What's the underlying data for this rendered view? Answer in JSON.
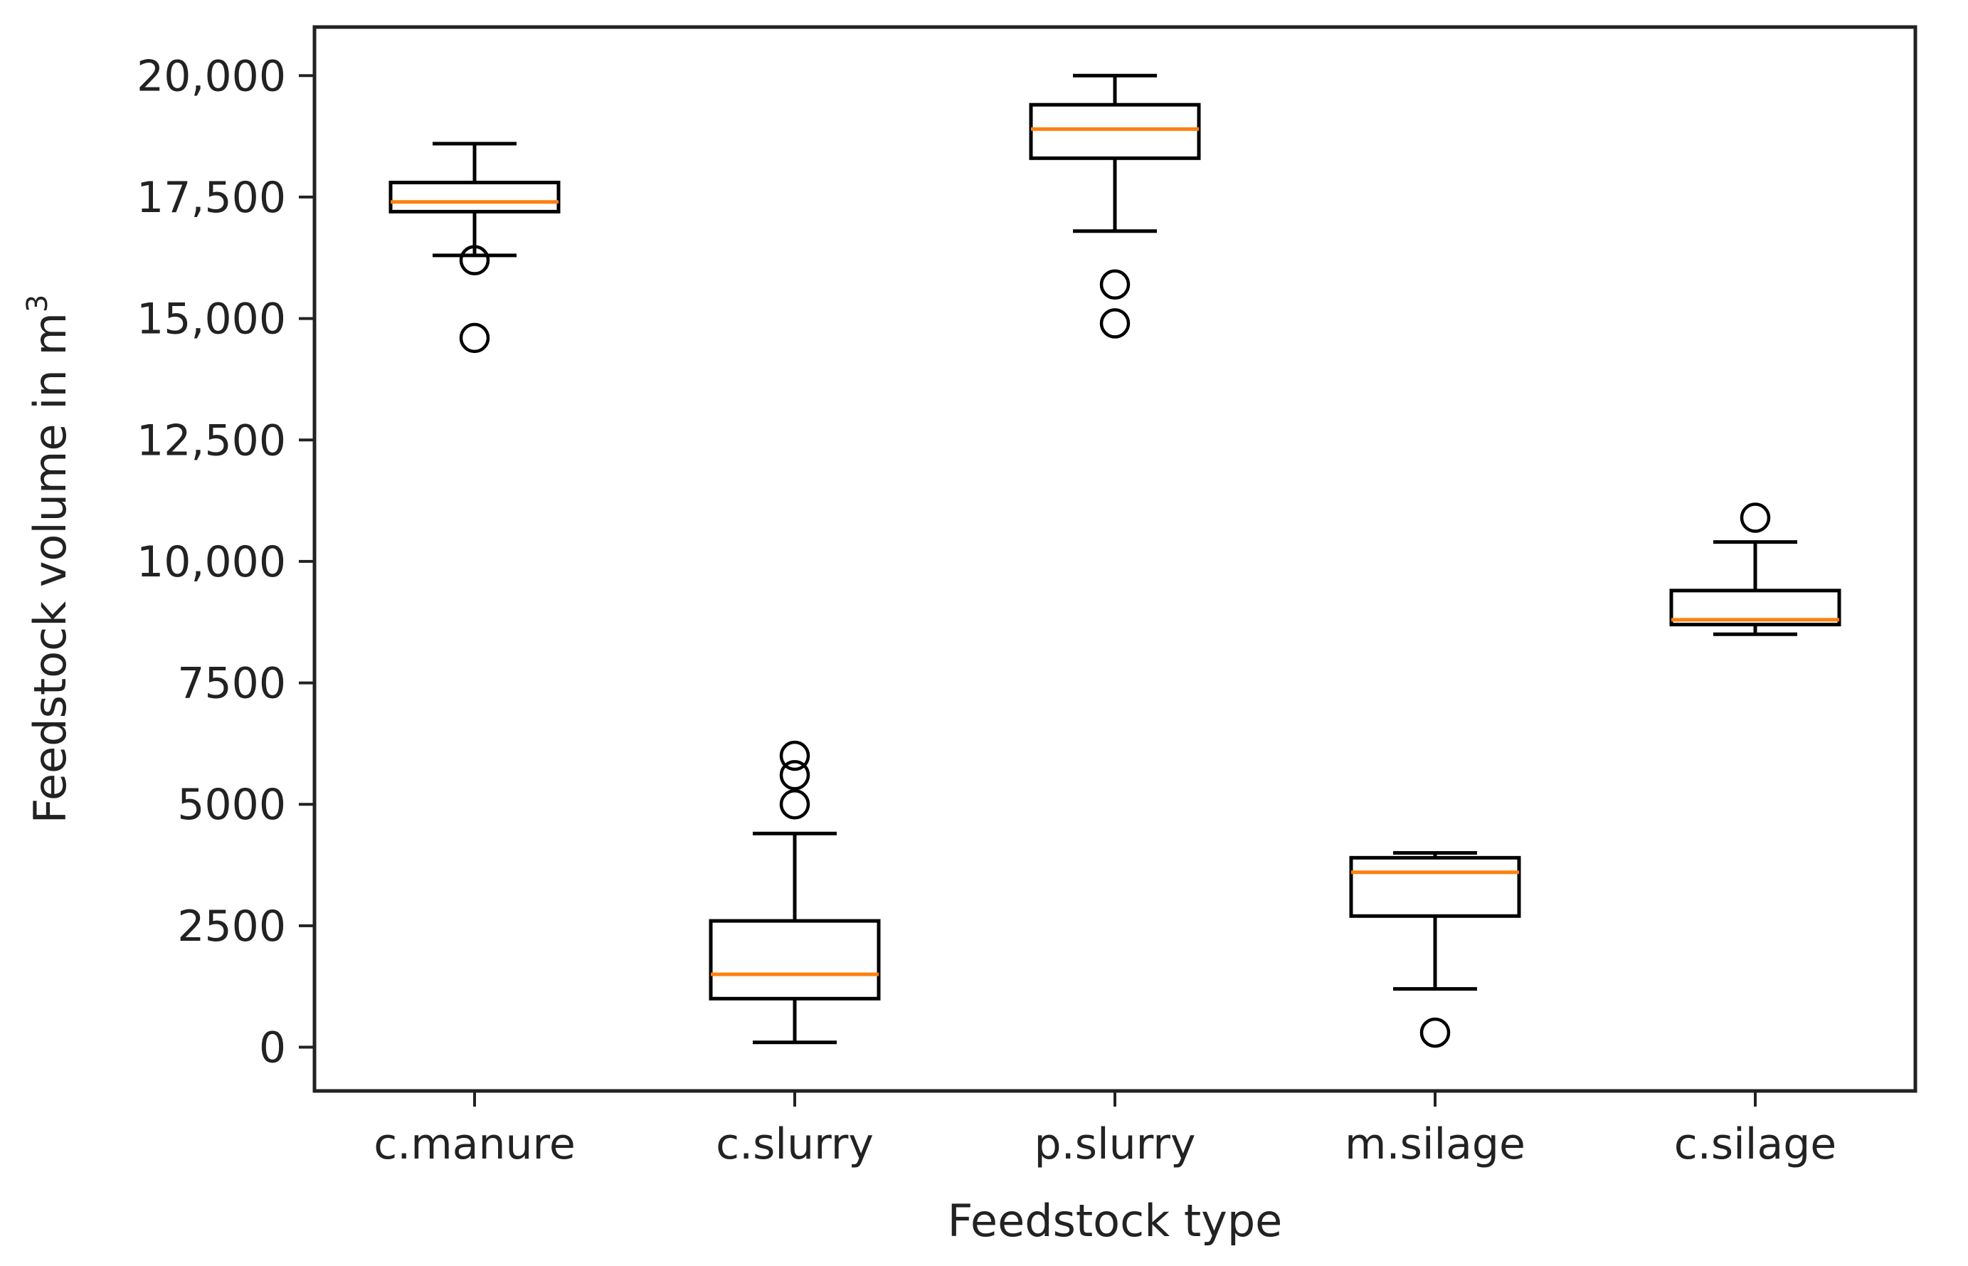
{
  "chart_data": {
    "type": "box",
    "title": "",
    "xlabel": "Feedstock type",
    "ylabel": "Feedstock volume in m",
    "ylabel_superscript": "3",
    "ylim": [
      -900,
      21000
    ],
    "yticks": [
      {
        "value": 0,
        "label": "0"
      },
      {
        "value": 2500,
        "label": "2500"
      },
      {
        "value": 5000,
        "label": "5000"
      },
      {
        "value": 7500,
        "label": "7500"
      },
      {
        "value": 10000,
        "label": "10,000"
      },
      {
        "value": 12500,
        "label": "12,500"
      },
      {
        "value": 15000,
        "label": "15,000"
      },
      {
        "value": 17500,
        "label": "17,500"
      },
      {
        "value": 20000,
        "label": "20,000"
      }
    ],
    "categories": [
      "c.manure",
      "c.slurry",
      "p.slurry",
      "m.silage",
      "c.silage"
    ],
    "boxes": [
      {
        "category": "c.manure",
        "whisker_low": 16300,
        "q1": 17200,
        "median": 17400,
        "q3": 17800,
        "whisker_high": 18600,
        "outliers": [
          16200,
          14600
        ]
      },
      {
        "category": "c.slurry",
        "whisker_low": 100,
        "q1": 1000,
        "median": 1500,
        "q3": 2600,
        "whisker_high": 4400,
        "outliers": [
          5000,
          5600,
          6000
        ]
      },
      {
        "category": "p.slurry",
        "whisker_low": 16800,
        "q1": 18300,
        "median": 18900,
        "q3": 19400,
        "whisker_high": 20000,
        "outliers": [
          15700,
          14900
        ]
      },
      {
        "category": "m.silage",
        "whisker_low": 1200,
        "q1": 2700,
        "median": 3600,
        "q3": 3900,
        "whisker_high": 4000,
        "outliers": [
          300
        ]
      },
      {
        "category": "c.silage",
        "whisker_low": 8500,
        "q1": 8700,
        "median": 8800,
        "q3": 9400,
        "whisker_high": 10400,
        "outliers": [
          10900
        ]
      }
    ],
    "colors": {
      "box": "#000000",
      "median": "#ff7f0e",
      "frame": "#222222",
      "text": "#222222"
    }
  }
}
